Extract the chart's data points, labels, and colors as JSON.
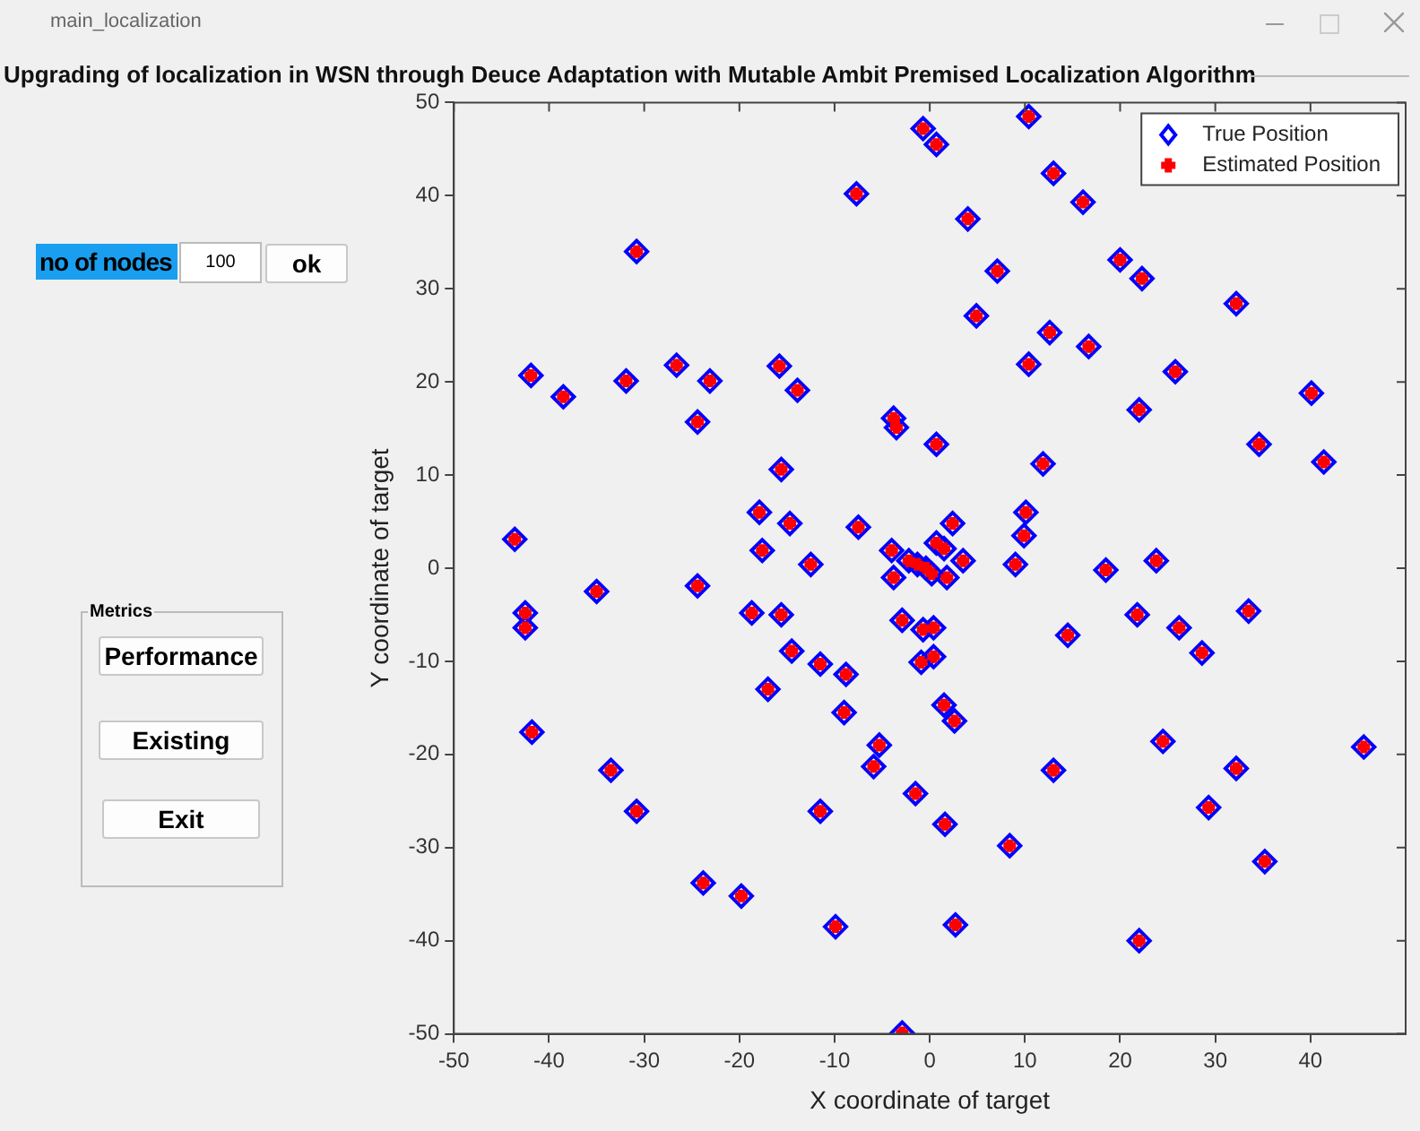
{
  "chart_data": {
    "type": "scatter",
    "title": "Upgrading of localization in WSN through Deuce Adaptation with Mutable Ambit Premised Localization Algorithm",
    "xlabel": "X coordinate of target",
    "ylabel": "Y coordinate of target",
    "annotations": [
      "main_localization",
      "no of nodes",
      "100",
      "ok",
      "Metrics",
      "Performance",
      "Existing",
      "Exit"
    ],
    "x": [
      10.4,
      -0.7,
      0.7,
      -7.7,
      13,
      16.1,
      4,
      -30.8,
      7.1,
      20,
      22.3,
      32.2,
      4.9,
      12.6,
      16.7,
      -41.9,
      -38.5,
      -31.9,
      -26.6,
      -23.1,
      -24.4,
      -15.8,
      -13.9,
      -15.6,
      10.4,
      22,
      25.8,
      40.1,
      34.6,
      41.4,
      -3.8,
      -3.5,
      0.7,
      11.9,
      -43.6,
      -17.9,
      -14.7,
      -7.5,
      -17.6,
      -12.5,
      -4,
      -3.8,
      2.4,
      1.5,
      0.7,
      10.1,
      9.9,
      9,
      3.5,
      1.8,
      -0.4,
      -1.3,
      -2.2,
      0.2,
      18.5,
      23.8,
      -42.5,
      -42.5,
      -35,
      -24.4,
      -18.7,
      -15.6,
      -14.5,
      -11.5,
      -8.8,
      -9,
      -17,
      -2.9,
      -0.7,
      0.4,
      -0.9,
      0.4,
      1.5,
      2.6,
      -5.3,
      -5.9,
      -1.5,
      -11.5,
      -33.5,
      -30.8,
      -41.8,
      -23.8,
      -19.8,
      -9.9,
      -2.9,
      1.6,
      2.7,
      8.4,
      13,
      14.5,
      21.8,
      26.2,
      28.6,
      33.5,
      24.5,
      29.3,
      32.2,
      35.2,
      22,
      45.6
    ],
    "series": [
      {
        "name": "True Position",
        "color": "#0000ff",
        "marker": "diamond",
        "values": [
          48.5,
          47.2,
          45.5,
          40.2,
          42.4,
          39.3,
          37.5,
          34,
          31.9,
          33.1,
          31.1,
          28.4,
          27.1,
          25.3,
          23.8,
          20.7,
          18.4,
          20.1,
          21.8,
          20.1,
          15.7,
          21.7,
          19.1,
          10.6,
          21.9,
          17,
          21.1,
          18.8,
          13.3,
          11.4,
          16.1,
          15.1,
          13.3,
          11.2,
          3.1,
          6,
          4.8,
          4.4,
          1.9,
          0.4,
          1.9,
          -1,
          4.8,
          2.1,
          2.7,
          6,
          3.5,
          0.4,
          0.8,
          -1,
          0,
          0.4,
          0.8,
          -0.6,
          -0.2,
          0.8,
          -4.8,
          -6.4,
          -2.5,
          -1.9,
          -4.8,
          -5,
          -8.9,
          -10.3,
          -11.4,
          -15.5,
          -13,
          -5.6,
          -6.6,
          -6.4,
          -10.1,
          -9.5,
          -14.7,
          -16.4,
          -19,
          -21.3,
          -24.2,
          -26.1,
          -21.7,
          -26.1,
          -17.6,
          -33.8,
          -35.2,
          -38.5,
          -49.9,
          -27.5,
          -38.3,
          -29.8,
          -21.7,
          -7.2,
          -5,
          -6.4,
          -9.1,
          -4.6,
          -18.6,
          -25.7,
          -21.5,
          -31.5,
          -40,
          -19.2
        ]
      },
      {
        "name": "Estimated Position",
        "color": "#ff0000",
        "marker": "cross",
        "values": [
          48.5,
          47.2,
          45.5,
          40.2,
          42.4,
          39.3,
          37.5,
          34,
          31.9,
          33.1,
          31.1,
          28.4,
          27.1,
          25.3,
          23.8,
          20.7,
          18.4,
          20.1,
          21.8,
          20.1,
          15.7,
          21.7,
          19.1,
          10.6,
          21.9,
          17,
          21.1,
          18.8,
          13.3,
          11.4,
          16.1,
          15.1,
          13.3,
          11.2,
          3.1,
          6,
          4.8,
          4.4,
          1.9,
          0.4,
          1.9,
          -1,
          4.8,
          2.1,
          2.7,
          6,
          3.5,
          0.4,
          0.8,
          -1,
          0,
          0.4,
          0.8,
          -0.6,
          -0.2,
          0.8,
          -4.8,
          -6.4,
          -2.5,
          -1.9,
          -4.8,
          -5,
          -8.9,
          -10.3,
          -11.4,
          -15.5,
          -13,
          -5.6,
          -6.6,
          -6.4,
          -10.1,
          -9.5,
          -14.7,
          -16.4,
          -19,
          -21.3,
          -24.2,
          -26.1,
          -21.7,
          -26.1,
          -17.6,
          -33.8,
          -35.2,
          -38.5,
          -49.9,
          -27.5,
          -38.3,
          -29.8,
          -21.7,
          -7.2,
          -5,
          -6.4,
          -9.1,
          -4.6,
          -18.6,
          -25.7,
          -21.5,
          -31.5,
          -40,
          -19.2
        ]
      }
    ],
    "xlim": [
      -50,
      50
    ],
    "xticks": [
      -50,
      -40,
      -30,
      -20,
      -10,
      0,
      10,
      20,
      30,
      40
    ],
    "ylim": [
      -50,
      50
    ],
    "yticks": [
      -50,
      -40,
      -30,
      -20,
      -10,
      0,
      10,
      20,
      30,
      40,
      50
    ],
    "grid": false,
    "legend": "top right"
  }
}
